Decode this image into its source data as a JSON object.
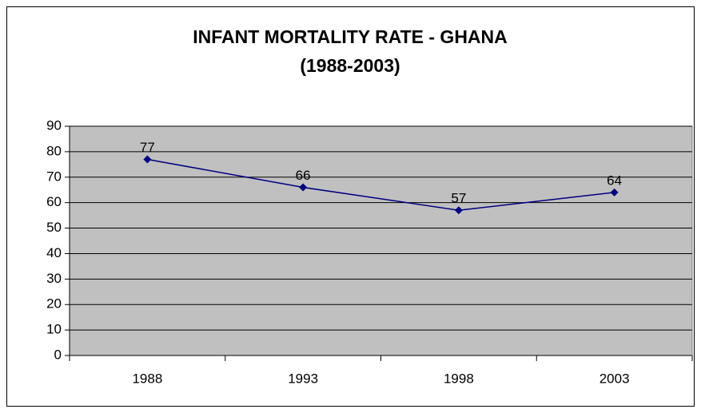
{
  "chart_data": {
    "type": "line",
    "title": [
      "INFANT MORTALITY RATE - GHANA",
      "(1988-2003)"
    ],
    "categories": [
      "1988",
      "1993",
      "1998",
      "2003"
    ],
    "series": [
      {
        "name": "Infant mortality rate",
        "color": "#000080",
        "values": [
          77,
          66,
          57,
          64
        ]
      }
    ],
    "ylim": [
      0,
      90
    ],
    "yticks": [
      0,
      10,
      20,
      30,
      40,
      50,
      60,
      70,
      80,
      90
    ],
    "grid": true,
    "plot_background": "#c0c0c0"
  }
}
